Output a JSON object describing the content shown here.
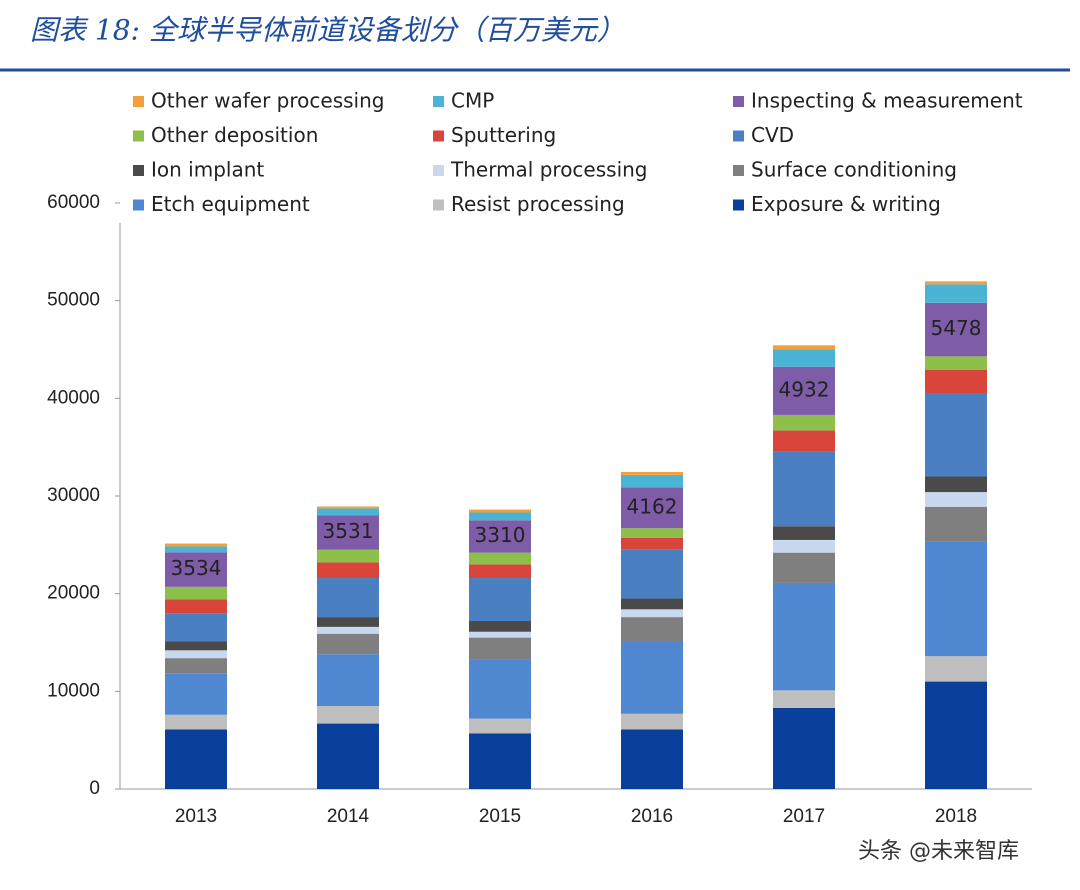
{
  "chart_data": {
    "type": "stacked_bar",
    "title": "图表 18: 全球半导体前道设备划分（百万美元）",
    "watermark": "头条 @未来智库",
    "categories": [
      "2013",
      "2014",
      "2015",
      "2016",
      "2017",
      "2018"
    ],
    "ylim": [
      0,
      60000
    ],
    "yticks": [
      0,
      10000,
      20000,
      30000,
      40000,
      50000,
      60000
    ],
    "grid": false,
    "series": [
      {
        "name": "Exposure & writing",
        "color": "#0b3f9c",
        "values": [
          6100,
          6700,
          5700,
          6100,
          8300,
          11000
        ]
      },
      {
        "name": "Resist processing",
        "color": "#bfbfbf",
        "values": [
          1500,
          1800,
          1500,
          1600,
          1800,
          2600
        ]
      },
      {
        "name": "Etch equipment",
        "color": "#4f88d0",
        "values": [
          4200,
          5300,
          6100,
          7400,
          11000,
          11700
        ]
      },
      {
        "name": "Surface conditioning",
        "color": "#7f7f7f",
        "values": [
          1600,
          2100,
          2200,
          2500,
          3100,
          3600
        ]
      },
      {
        "name": "Thermal processing",
        "color": "#c8d8ee",
        "values": [
          800,
          700,
          600,
          800,
          1300,
          1500
        ]
      },
      {
        "name": "Ion implant",
        "color": "#4a4a4a",
        "values": [
          900,
          1000,
          1100,
          1100,
          1400,
          1600
        ]
      },
      {
        "name": "CVD",
        "color": "#4a7fc1",
        "values": [
          2900,
          4000,
          4400,
          5000,
          7700,
          8500
        ]
      },
      {
        "name": "Sputtering",
        "color": "#d9453b",
        "values": [
          1400,
          1600,
          1400,
          1200,
          2100,
          2400
        ]
      },
      {
        "name": "Other deposition",
        "color": "#8dc04a",
        "values": [
          1300,
          1300,
          1200,
          1000,
          1600,
          1400
        ]
      },
      {
        "name": "Inspecting & measurement",
        "color": "#7e5ca8",
        "values": [
          3534,
          3531,
          3310,
          4162,
          4932,
          5478
        ]
      },
      {
        "name": "CMP",
        "color": "#4bb3d4",
        "values": [
          600,
          700,
          800,
          1300,
          1800,
          1900
        ]
      },
      {
        "name": "Other wafer processing",
        "color": "#f4a03a",
        "values": [
          300,
          200,
          300,
          300,
          400,
          300
        ]
      }
    ],
    "labeled_series": 9
  }
}
